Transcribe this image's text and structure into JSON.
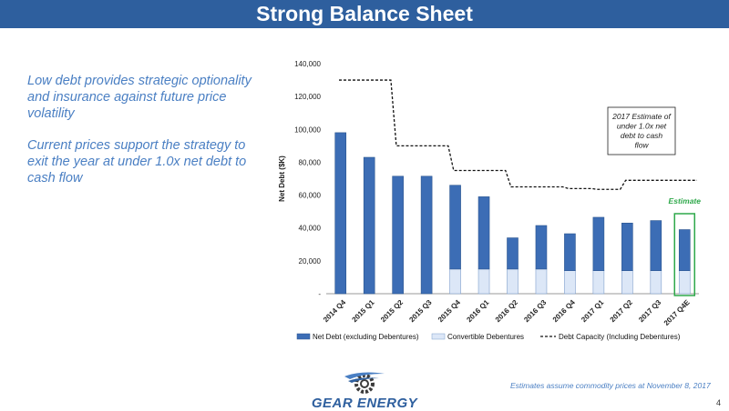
{
  "slide": {
    "title": "Strong Balance Sheet",
    "bullets": [
      "Low debt provides strategic optionality and insurance against future price volatility",
      "Current prices support the strategy to exit the year at under 1.0x net debt to cash flow"
    ],
    "footnote": "Estimates assume commodity prices at November 8, 2017",
    "page_number": "4",
    "logo_text": "GEAR ENERGY"
  },
  "colors": {
    "title_bar": "#2e5f9e",
    "bullet_text": "#4a7fc3",
    "net_debt": "#3c6db5",
    "convertible": "#dce7f7",
    "estimate_box": "#2ea84a"
  },
  "chart_data": {
    "type": "bar",
    "categories": [
      "2014 Q4",
      "2015 Q1",
      "2015 Q2",
      "2015 Q3",
      "2015 Q4",
      "2016 Q1",
      "2016 Q2",
      "2016 Q3",
      "2016 Q4",
      "2017 Q1",
      "2017 Q2",
      "2017 Q3",
      "2017 Q4E"
    ],
    "series": [
      {
        "name": "Net Debt (excluding Debentures)",
        "values": [
          98000,
          83000,
          71500,
          71500,
          51000,
          44000,
          19000,
          26500,
          22500,
          32500,
          29000,
          30500,
          25000
        ]
      },
      {
        "name": "Convertible Debentures",
        "values": [
          0,
          0,
          0,
          0,
          15000,
          15000,
          15000,
          15000,
          14000,
          14000,
          14000,
          14000,
          14000
        ]
      },
      {
        "name": "Debt Capacity (Including Debentures)",
        "type": "line",
        "values": [
          130000,
          130000,
          90000,
          90000,
          75000,
          75000,
          65000,
          65000,
          64000,
          63500,
          69000,
          69000,
          69000
        ]
      }
    ],
    "stacked": true,
    "ylabel": "Net Debt ($K)",
    "ylim": [
      0,
      140000
    ],
    "yticks": [
      0,
      20000,
      40000,
      60000,
      80000,
      100000,
      120000,
      140000
    ],
    "ytick_labels": [
      "-",
      "20,000",
      "40,000",
      "60,000",
      "80,000",
      "100,000",
      "120,000",
      "140,000"
    ],
    "legend_position": "bottom",
    "annotations": {
      "callout": "2017 Estimate of under 1.0x net debt to cash flow",
      "estimate_label": "Estimate"
    }
  }
}
